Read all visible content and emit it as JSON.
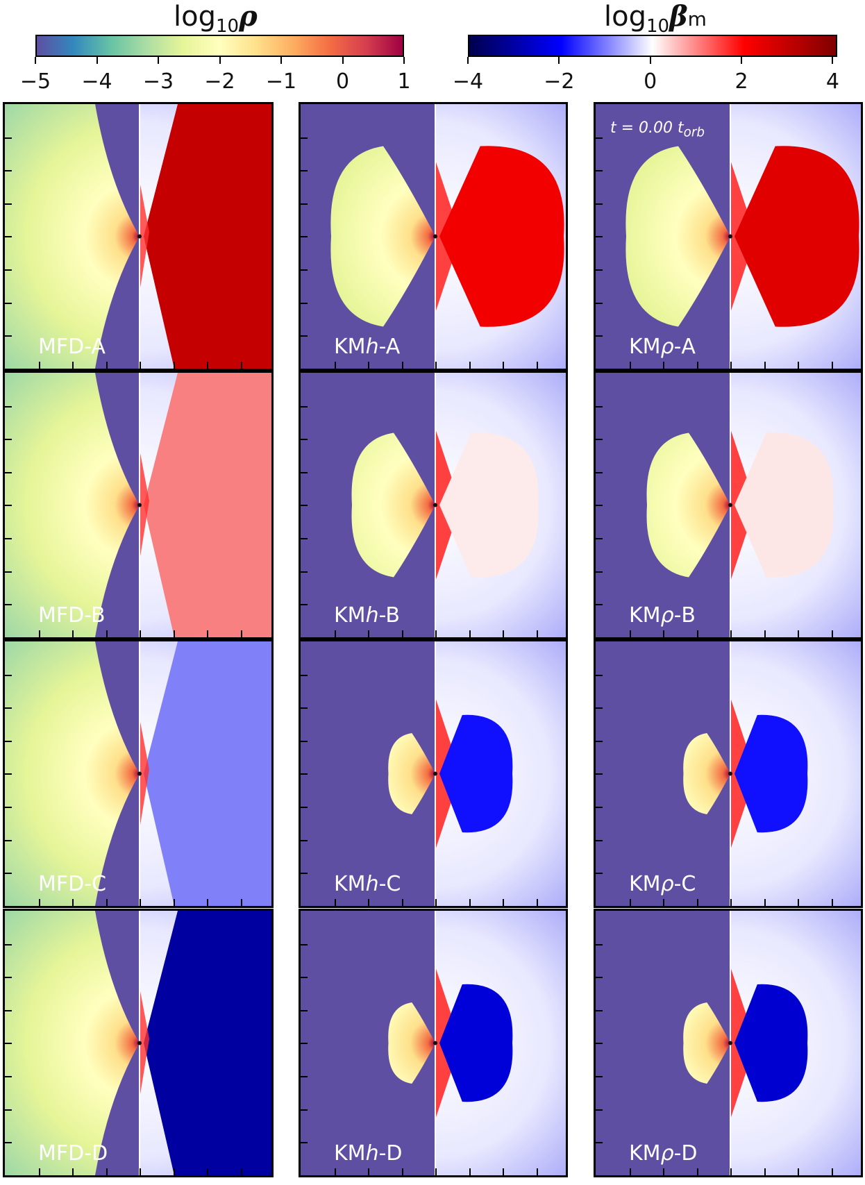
{
  "colorbar_rho": {
    "title_main": "log",
    "title_sub": "10",
    "title_sym": "ρ",
    "ticks": [
      "−5",
      "−4",
      "−3",
      "−2",
      "−1",
      "0",
      "1"
    ],
    "range": [
      -5,
      1
    ],
    "colors": [
      "#5e4fa2",
      "#3288bd",
      "#66c2a5",
      "#abdda4",
      "#e6f598",
      "#ffffbf",
      "#fee08b",
      "#fdae61",
      "#f46d43",
      "#d53e4f",
      "#9e0142"
    ]
  },
  "colorbar_beta": {
    "title_main": "log",
    "title_sub": "10",
    "title_sym": "β",
    "title_subscript": "m",
    "ticks": [
      "−4",
      "−2",
      "0",
      "2",
      "4"
    ],
    "range": [
      -4,
      4.1
    ],
    "colors": [
      "#00004c",
      "#0000ff",
      "#ffffff",
      "#ff0000",
      "#800000"
    ]
  },
  "time_label": "t = 0.00 t",
  "time_label_sub": "orb",
  "chart_data": {
    "type": "heatmap",
    "grid": {
      "rows": [
        "A",
        "B",
        "C",
        "D"
      ],
      "columns": [
        "MFD",
        "KMh",
        "KMρ"
      ]
    },
    "panels": [
      [
        {
          "prefix": "MFD",
          "italic": "",
          "suffix": "-A",
          "beta_fill": "#c40000",
          "model": "MFD"
        },
        {
          "prefix": "KM",
          "italic": "h",
          "suffix": "-A",
          "beta_fill": "#f20000",
          "model": "KM",
          "torus_size": 1.0
        },
        {
          "prefix": "KM",
          "italic": "ρ",
          "suffix": "-A",
          "beta_fill": "#e00000",
          "model": "KM",
          "torus_size": 1.0
        }
      ],
      [
        {
          "prefix": "MFD",
          "italic": "",
          "suffix": "-B",
          "beta_fill": "#f88080",
          "model": "MFD"
        },
        {
          "prefix": "KM",
          "italic": "h",
          "suffix": "-B",
          "beta_fill": "#fdeaea",
          "model": "KM",
          "torus_size": 0.8
        },
        {
          "prefix": "KM",
          "italic": "ρ",
          "suffix": "-B",
          "beta_fill": "#fde6e6",
          "model": "KM",
          "torus_size": 0.8
        }
      ],
      [
        {
          "prefix": "MFD",
          "italic": "",
          "suffix": "-C",
          "beta_fill": "#8080f8",
          "model": "MFD"
        },
        {
          "prefix": "KM",
          "italic": "h",
          "suffix": "-C",
          "beta_fill": "#1010ff",
          "model": "KM",
          "torus_size": 0.45
        },
        {
          "prefix": "KM",
          "italic": "ρ",
          "suffix": "-C",
          "beta_fill": "#1010ff",
          "model": "KM",
          "torus_size": 0.45
        }
      ],
      [
        {
          "prefix": "MFD",
          "italic": "",
          "suffix": "-D",
          "beta_fill": "#0000a0",
          "model": "MFD"
        },
        {
          "prefix": "KM",
          "italic": "h",
          "suffix": "-D",
          "beta_fill": "#0000d8",
          "model": "KM",
          "torus_size": 0.45
        },
        {
          "prefix": "KM",
          "italic": "ρ",
          "suffix": "-D",
          "beta_fill": "#0000d0",
          "model": "KM",
          "torus_size": 0.45
        }
      ]
    ]
  }
}
